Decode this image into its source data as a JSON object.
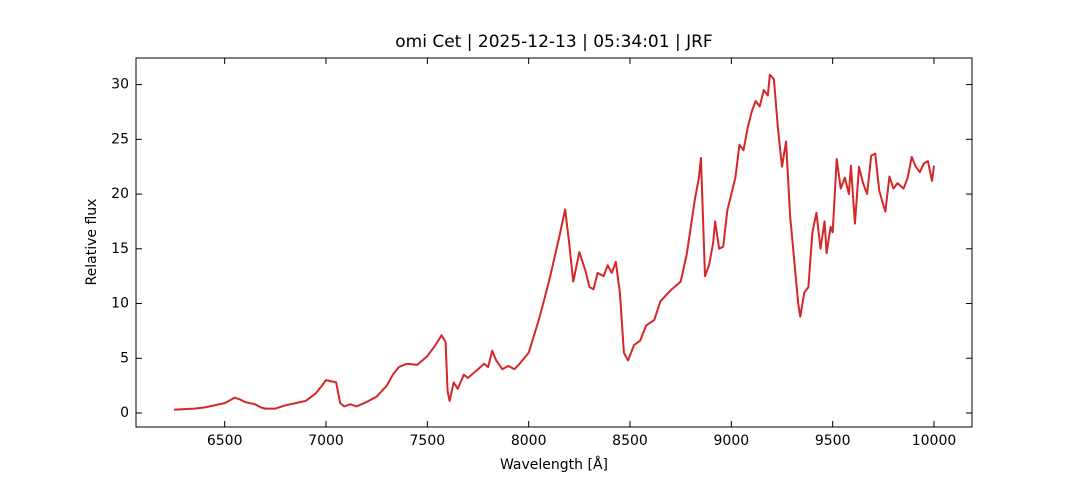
{
  "chart_data": {
    "type": "line",
    "title": "omi Cet | 2025-12-13 | 05:34:01 | JRF",
    "x_label": "Wavelength [Å]",
    "y_label": "Relative flux",
    "x": [
      6250,
      6300,
      6350,
      6400,
      6450,
      6500,
      6520,
      6550,
      6580,
      6600,
      6650,
      6680,
      6700,
      6750,
      6800,
      6850,
      6900,
      6950,
      6980,
      7000,
      7050,
      7070,
      7090,
      7120,
      7150,
      7200,
      7250,
      7300,
      7330,
      7360,
      7400,
      7450,
      7500,
      7540,
      7570,
      7590,
      7600,
      7610,
      7630,
      7650,
      7680,
      7700,
      7750,
      7780,
      7800,
      7820,
      7840,
      7870,
      7900,
      7930,
      7960,
      8000,
      8050,
      8100,
      8150,
      8180,
      8200,
      8220,
      8250,
      8280,
      8300,
      8320,
      8340,
      8370,
      8390,
      8410,
      8430,
      8450,
      8470,
      8490,
      8520,
      8550,
      8580,
      8620,
      8650,
      8700,
      8750,
      8780,
      8800,
      8820,
      8840,
      8850,
      8870,
      8890,
      8910,
      8920,
      8940,
      8960,
      8980,
      9000,
      9020,
      9040,
      9060,
      9080,
      9100,
      9120,
      9140,
      9160,
      9180,
      9190,
      9210,
      9230,
      9250,
      9270,
      9290,
      9310,
      9330,
      9340,
      9360,
      9380,
      9400,
      9420,
      9440,
      9460,
      9470,
      9490,
      9500,
      9520,
      9540,
      9560,
      9580,
      9590,
      9610,
      9630,
      9650,
      9670,
      9690,
      9710,
      9730,
      9750,
      9760,
      9780,
      9800,
      9820,
      9850,
      9870,
      9890,
      9910,
      9930,
      9950,
      9970,
      9990,
      10000
    ],
    "series": [
      {
        "name": "flux",
        "color": "#d62728",
        "values": [
          0.3,
          0.35,
          0.4,
          0.5,
          0.7,
          0.9,
          1.1,
          1.4,
          1.2,
          1.0,
          0.8,
          0.5,
          0.4,
          0.4,
          0.7,
          0.9,
          1.1,
          1.8,
          2.5,
          3.0,
          2.8,
          0.9,
          0.6,
          0.8,
          0.6,
          1.0,
          1.5,
          2.5,
          3.5,
          4.2,
          4.5,
          4.4,
          5.2,
          6.2,
          7.1,
          6.5,
          2.0,
          1.1,
          2.8,
          2.2,
          3.5,
          3.2,
          4.0,
          4.5,
          4.2,
          5.7,
          4.8,
          4.0,
          4.3,
          4.0,
          4.6,
          5.5,
          8.5,
          12,
          16,
          18.6,
          15.5,
          12.0,
          14.7,
          13.0,
          11.5,
          11.3,
          12.8,
          12.5,
          13.5,
          12.8,
          13.8,
          11.0,
          5.5,
          4.8,
          6.2,
          6.6,
          8.0,
          8.5,
          10.2,
          11.2,
          12.0,
          14.5,
          17,
          19.5,
          21.5,
          23.3,
          12.5,
          13.5,
          15.5,
          17.5,
          15.0,
          15.2,
          18.5,
          20,
          21.5,
          24.5,
          24.0,
          26.0,
          27.5,
          28.5,
          28.0,
          29.5,
          29.0,
          30.9,
          30.5,
          26.0,
          22.5,
          24.8,
          18.0,
          14.0,
          10.0,
          8.8,
          11.0,
          11.5,
          16.5,
          18.3,
          15.0,
          17.5,
          14.6,
          17.0,
          16.5,
          23.2,
          20.5,
          21.5,
          20.0,
          22.6,
          17.3,
          22.5,
          21.0,
          20.0,
          23.5,
          23.7,
          20.3,
          19.0,
          18.4,
          21.6,
          20.5,
          21.0,
          20.5,
          21.5,
          23.4,
          22.5,
          22.0,
          22.8,
          23.0,
          21.2,
          22.6
        ]
      }
    ],
    "xlim": [
      6062.5,
      10187.5
    ],
    "xticks": [
      6500,
      7000,
      7500,
      8000,
      8500,
      9000,
      9500,
      10000
    ],
    "ylim": [
      -1.28,
      32.43
    ],
    "yticks": [
      0,
      5,
      10,
      15,
      20,
      25,
      30
    ]
  }
}
